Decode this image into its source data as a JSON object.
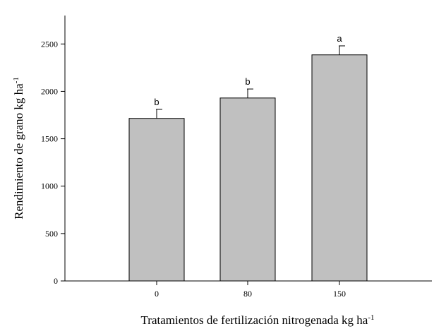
{
  "chart_data": {
    "type": "bar",
    "categories": [
      "0",
      "80",
      "150"
    ],
    "values": [
      1715,
      1930,
      2385
    ],
    "error": [
      95,
      95,
      95
    ],
    "significance_letters": [
      "b",
      "b",
      "a"
    ],
    "xlabel": "Tratamientos de fertilización nitrogenada kg ha",
    "xlabel_sup": "-1",
    "ylabel": "Rendimiento de grano kg ha",
    "ylabel_sup": "-1",
    "ylim": [
      0,
      2800
    ],
    "yticks": [
      0,
      500,
      1000,
      1500,
      2000,
      2500
    ],
    "bar_color": "#c0c0c0",
    "grid": false
  }
}
